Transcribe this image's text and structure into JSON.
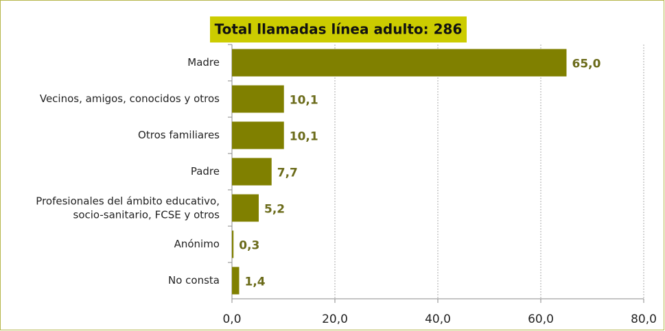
{
  "chart_data": {
    "type": "bar",
    "orientation": "horizontal",
    "title": "Total llamadas línea adulto:  286",
    "categories": [
      "Madre",
      "Vecinos, amigos, conocidos y otros",
      "Otros familiares",
      "Padre",
      "Profesionales del ámbito educativo,\nsocio-sanitario, FCSE y otros",
      "Anónimo",
      "No consta"
    ],
    "values": [
      65.0,
      10.1,
      10.1,
      7.7,
      5.2,
      0.3,
      1.4
    ],
    "value_labels": [
      "65,0",
      "10,1",
      "10,1",
      "7,7",
      "5,2",
      "0,3",
      "1,4"
    ],
    "color": "#808000",
    "xlim": [
      0,
      80
    ],
    "xticks": [
      {
        "value": 0,
        "label": "0,0"
      },
      {
        "value": 20,
        "label": "20,0"
      },
      {
        "value": 40,
        "label": "40,0"
      },
      {
        "value": 60,
        "label": "60,0"
      },
      {
        "value": 80,
        "label": "80,0"
      }
    ],
    "grid": true
  }
}
